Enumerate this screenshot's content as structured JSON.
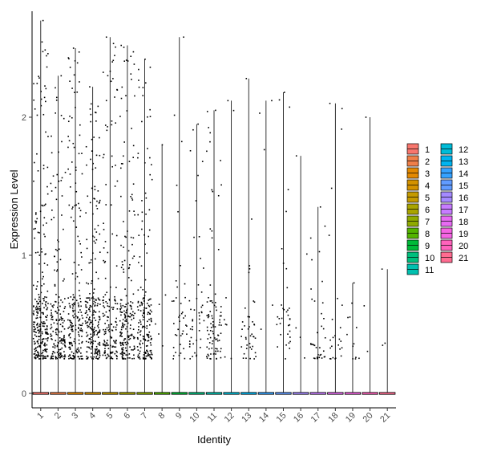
{
  "chart_data": {
    "type": "violin-jitter",
    "xlabel": "Identity",
    "ylabel": "Expression Level",
    "ylim": [
      -0.12,
      2.8
    ],
    "yticks": [
      0,
      1,
      2
    ],
    "grid": false,
    "legend_position": "right",
    "categories": [
      "1",
      "2",
      "3",
      "4",
      "5",
      "6",
      "7",
      "8",
      "9",
      "10",
      "11",
      "12",
      "13",
      "14",
      "15",
      "16",
      "17",
      "18",
      "19",
      "20",
      "21"
    ],
    "colors": [
      "#F8766D",
      "#EF7F48",
      "#E38900",
      "#D39200",
      "#C49A00",
      "#A9A400",
      "#8FAA00",
      "#53B400",
      "#00BA38",
      "#00BF7D",
      "#00C0AF",
      "#00BCD8",
      "#00B4F0",
      "#35A2FF",
      "#619CFF",
      "#A58AFF",
      "#C77CFF",
      "#E76BF3",
      "#F564E3",
      "#FF62BC",
      "#FF6C91"
    ],
    "series": [
      {
        "name": "1",
        "max": 2.7,
        "n_expr": 260
      },
      {
        "name": "2",
        "max": 2.3,
        "n_expr": 180
      },
      {
        "name": "3",
        "max": 2.5,
        "n_expr": 200
      },
      {
        "name": "4",
        "max": 2.22,
        "n_expr": 230
      },
      {
        "name": "5",
        "max": 2.58,
        "n_expr": 160
      },
      {
        "name": "6",
        "max": 2.52,
        "n_expr": 200
      },
      {
        "name": "7",
        "max": 2.42,
        "n_expr": 180
      },
      {
        "name": "8",
        "max": 1.8,
        "n_expr": 6
      },
      {
        "name": "9",
        "max": 2.58,
        "n_expr": 40
      },
      {
        "name": "10",
        "max": 1.95,
        "n_expr": 45
      },
      {
        "name": "11",
        "max": 2.05,
        "n_expr": 90
      },
      {
        "name": "12",
        "max": 2.12,
        "n_expr": 8
      },
      {
        "name": "13",
        "max": 2.28,
        "n_expr": 40
      },
      {
        "name": "14",
        "max": 2.12,
        "n_expr": 5
      },
      {
        "name": "15",
        "max": 2.18,
        "n_expr": 35
      },
      {
        "name": "16",
        "max": 1.72,
        "n_expr": 5
      },
      {
        "name": "17",
        "max": 1.35,
        "n_expr": 35
      },
      {
        "name": "18",
        "max": 2.1,
        "n_expr": 25
      },
      {
        "name": "19",
        "max": 0.8,
        "n_expr": 12
      },
      {
        "name": "20",
        "max": 2.0,
        "n_expr": 3
      },
      {
        "name": "21",
        "max": 0.9,
        "n_expr": 3
      }
    ]
  }
}
